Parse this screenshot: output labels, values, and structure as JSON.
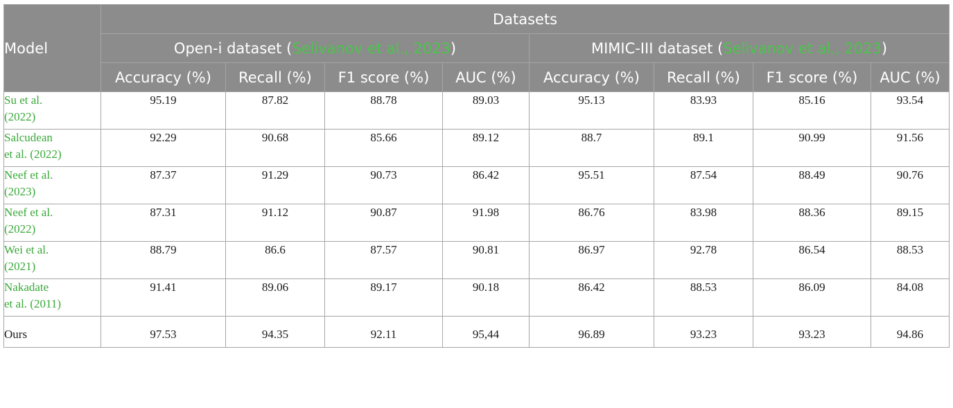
{
  "header": {
    "model": "Model",
    "datasets": "Datasets",
    "open_i": {
      "name": "Open-i dataset (",
      "cite": "Selivanov et al., 2023",
      "close": ")"
    },
    "mimic": {
      "name": "MIMIC-III dataset (",
      "cite": "Selivanov et al., 2023",
      "close": ")"
    },
    "metrics": [
      "Accuracy (%)",
      "Recall (%)",
      "F1 score (%)",
      "AUC (%)",
      "Accuracy (%)",
      "Recall (%)",
      "F1 score (%)",
      "AUC (%)"
    ]
  },
  "rows": [
    {
      "model_line1": "Su et al.",
      "model_line2": "(2022)",
      "values": [
        "95.19",
        "87.82",
        "88.78",
        "89.03",
        "95.13",
        "83.93",
        "85.16",
        "93.54"
      ]
    },
    {
      "model_line1": "Salcudean",
      "model_line2": "et al. (2022)",
      "values": [
        "92.29",
        "90.68",
        "85.66",
        "89.12",
        "88.7",
        "89.1",
        "90.99",
        "91.56"
      ]
    },
    {
      "model_line1": "Neef et al.",
      "model_line2": "(2023)",
      "values": [
        "87.37",
        "91.29",
        "90.73",
        "86.42",
        "95.51",
        "87.54",
        "88.49",
        "90.76"
      ]
    },
    {
      "model_line1": "Neef et al.",
      "model_line2": "(2022)",
      "values": [
        "87.31",
        "91.12",
        "90.87",
        "91.98",
        "86.76",
        "83.98",
        "88.36",
        "89.15"
      ]
    },
    {
      "model_line1": "Wei et al.",
      "model_line2": "(2021)",
      "values": [
        "88.79",
        "86.6",
        "87.57",
        "90.81",
        "86.97",
        "92.78",
        "86.54",
        "88.53"
      ]
    },
    {
      "model_line1": "Nakadate",
      "model_line2": "et al. (2011)",
      "values": [
        "91.41",
        "89.06",
        "89.17",
        "90.18",
        "86.42",
        "88.53",
        "86.09",
        "84.08"
      ]
    },
    {
      "model_line1": "Ours",
      "model_line2": "",
      "values": [
        "97.53",
        "94.35",
        "92.11",
        "95,44",
        "96.89",
        "93.23",
        "93.23",
        "94.86"
      ]
    }
  ],
  "colors": {
    "header_bg": "#8c8c8c",
    "header_text": "#ffffff",
    "citation": "#4cc44c",
    "border": "#a6a6a6"
  }
}
